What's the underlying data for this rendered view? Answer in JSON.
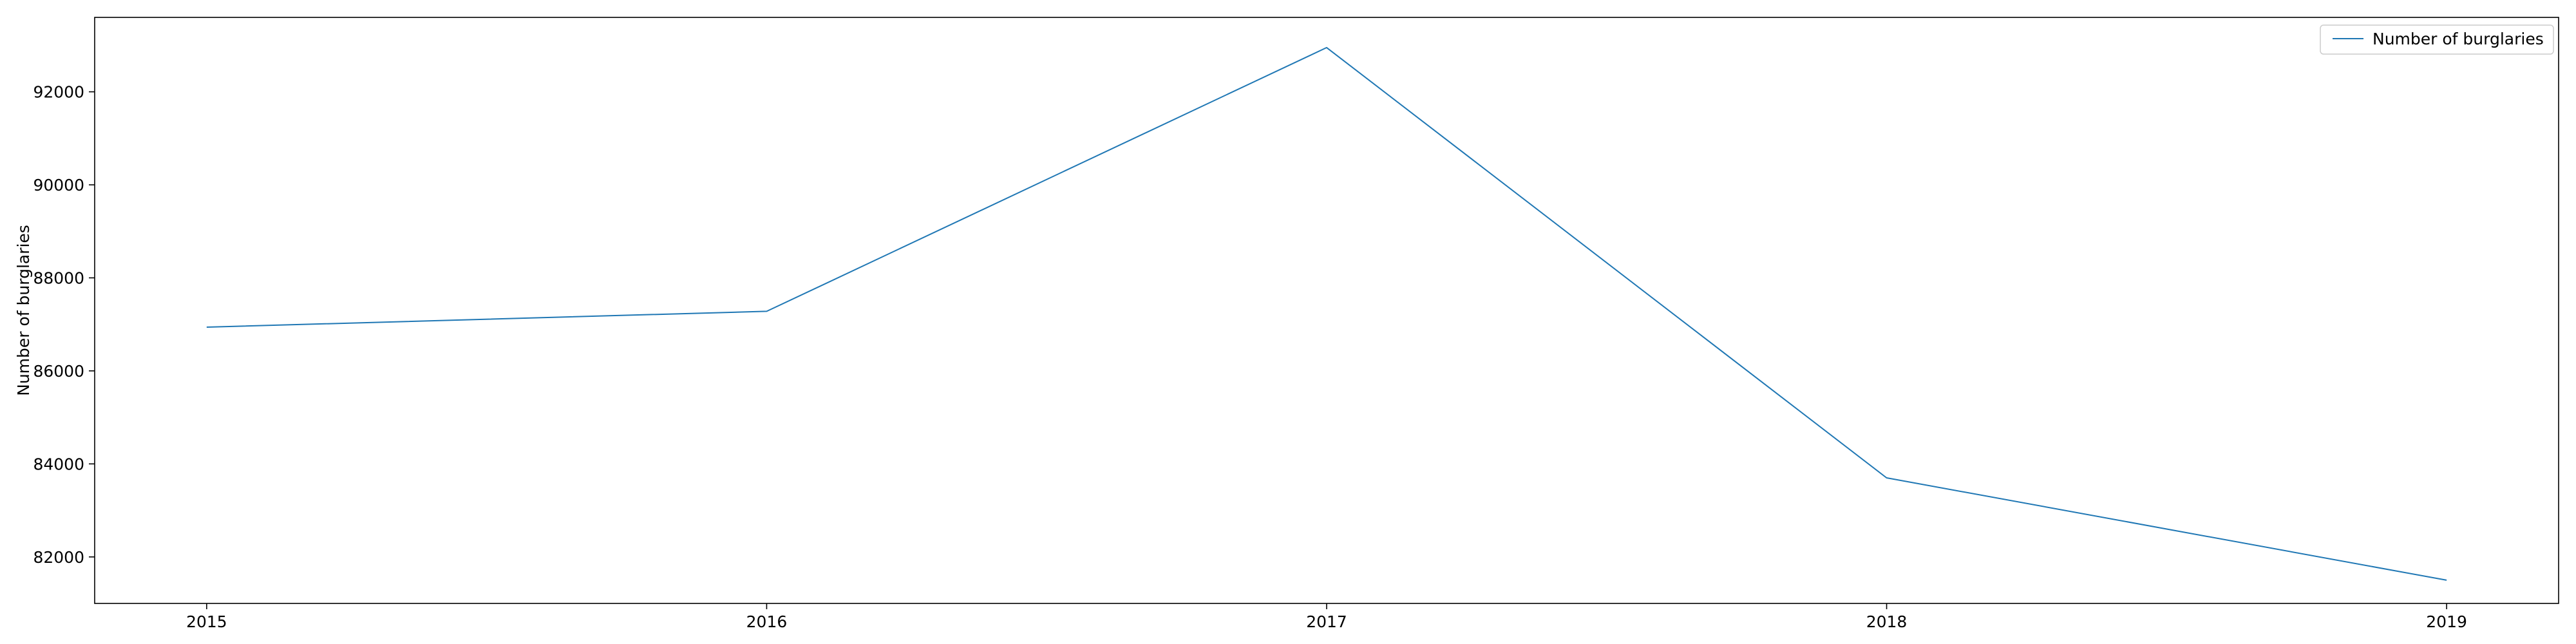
{
  "chart_data": {
    "type": "line",
    "x": [
      2015,
      2016,
      2017,
      2018,
      2019
    ],
    "x_tick_labels": [
      "2015",
      "2016",
      "2017",
      "2018",
      "2019"
    ],
    "series": [
      {
        "name": "Number of burglaries",
        "values": [
          86940,
          87280,
          92950,
          83700,
          81500
        ],
        "color": "#1f77b4"
      }
    ],
    "y_ticks": [
      82000,
      84000,
      86000,
      88000,
      90000,
      92000
    ],
    "y_tick_labels": [
      "82000",
      "84000",
      "86000",
      "88000",
      "90000",
      "92000"
    ],
    "title": "",
    "xlabel": "",
    "ylabel": "Number of burglaries",
    "xlim": [
      2014.8,
      2019.2
    ],
    "ylim": [
      81000,
      93600
    ],
    "grid": false,
    "legend_position": "top-right"
  }
}
